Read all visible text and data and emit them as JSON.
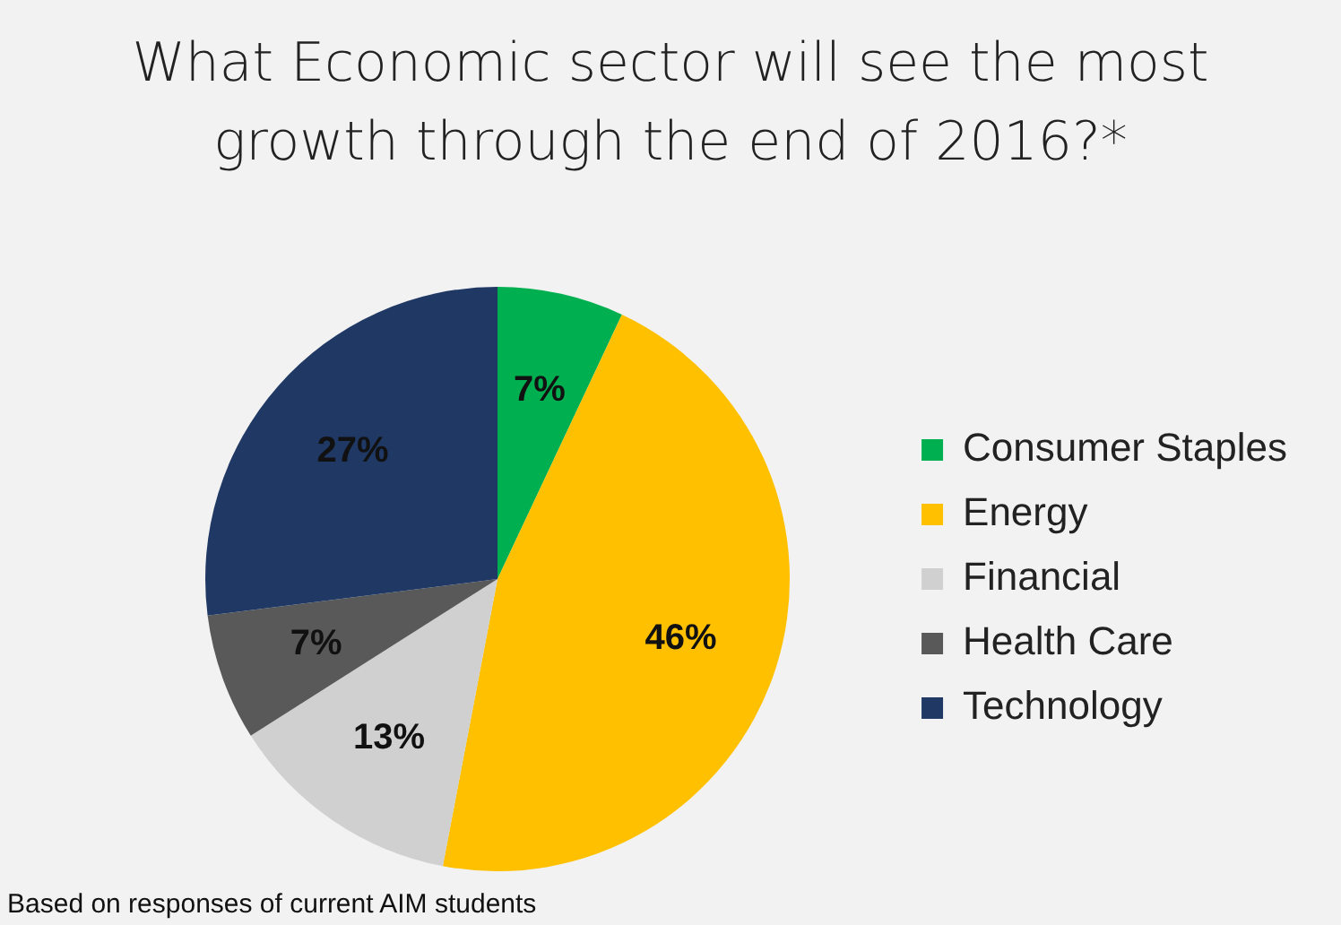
{
  "chart_data": {
    "type": "pie",
    "title": "What Economic sector will see the most growth through the end of 2016?*",
    "categories": [
      "Consumer Staples",
      "Energy",
      "Financial",
      "Health Care",
      "Technology"
    ],
    "values": [
      7,
      46,
      13,
      7,
      27
    ],
    "colors": [
      "#00b050",
      "#ffc000",
      "#d0d0d0",
      "#595959",
      "#1f3864"
    ],
    "value_labels": [
      "7%",
      "46%",
      "13%",
      "7%",
      "27%"
    ],
    "legend": "right",
    "annotations": [
      "Based on responses of current AIM students"
    ]
  }
}
